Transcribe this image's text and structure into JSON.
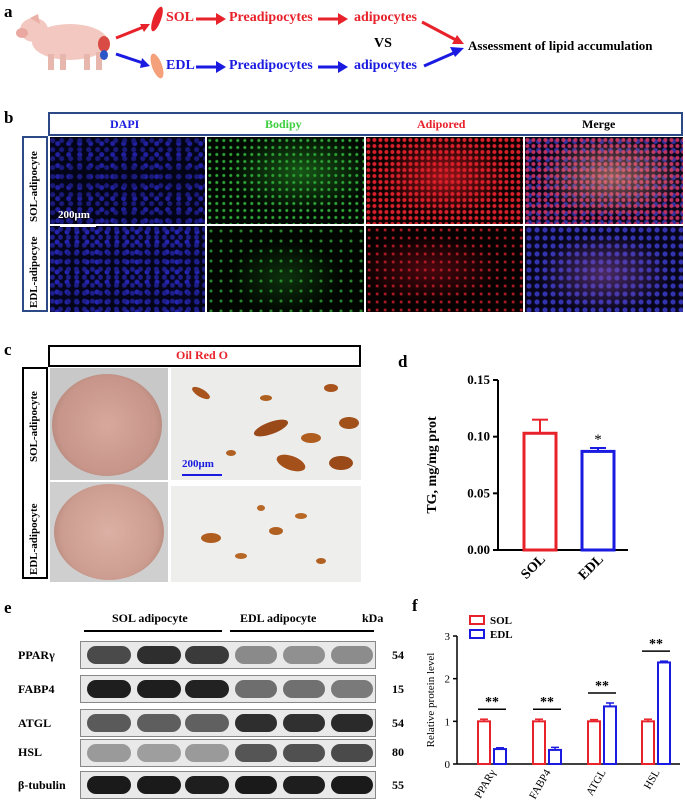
{
  "panel_a": {
    "label": "a",
    "sol": "SOL",
    "edl": "EDL",
    "preadipocytes": "Preadipocytes",
    "adipocytes": "adipocytes",
    "vs": "VS",
    "assessment": "Assessment  of lipid  accumulation"
  },
  "panel_b": {
    "label": "b",
    "channels": [
      "DAPI",
      "Bodipy",
      "Adipored",
      "Merge"
    ],
    "rows": [
      "SOL-adipocyte",
      "EDL-adipocyte"
    ],
    "scale": "200μm"
  },
  "panel_c": {
    "label": "c",
    "stain": "Oil Red O",
    "rows": [
      "SOL-adipocyte",
      "EDL-adipocyte"
    ],
    "scale": "200μm"
  },
  "panel_e": {
    "label": "e",
    "groups": [
      "SOL adipocyte",
      "EDL adipocyte"
    ],
    "kda": "kDa",
    "rows": [
      {
        "name": "PPARγ",
        "kda": "54"
      },
      {
        "name": "FABP4",
        "kda": "15"
      },
      {
        "name": "ATGL",
        "kda": "54"
      },
      {
        "name": "HSL",
        "kda": "80"
      },
      {
        "name": "β-tubulin",
        "kda": "55"
      }
    ]
  },
  "chart_data": [
    {
      "panel": "d",
      "type": "bar",
      "categories": [
        "SOL",
        "EDL"
      ],
      "values": [
        0.103,
        0.087
      ],
      "errors": [
        0.012,
        0.003
      ],
      "colors": [
        "#e8222a",
        "#1a1ae0"
      ],
      "ylabel": "TG, mg/mg prot",
      "ylim": [
        0,
        0.15
      ],
      "yticks": [
        "0.00",
        "0.05",
        "0.10",
        "0.15"
      ],
      "significance": [
        "",
        "*"
      ]
    },
    {
      "panel": "f",
      "type": "bar",
      "categories": [
        "PPARγ",
        "FABP4",
        "ATGL",
        "HSL"
      ],
      "ylabel": "Relative protein level",
      "ylim": [
        0,
        3
      ],
      "yticks": [
        "0",
        "1",
        "2",
        "3"
      ],
      "legend": "top-left",
      "series": [
        {
          "name": "SOL",
          "color": "#e8222a",
          "values": [
            1.0,
            1.0,
            1.0,
            1.0
          ],
          "errors": [
            0.05,
            0.05,
            0.04,
            0.05
          ]
        },
        {
          "name": "EDL",
          "color": "#1a1ae0",
          "values": [
            0.35,
            0.33,
            1.35,
            2.38
          ],
          "errors": [
            0.03,
            0.06,
            0.08,
            0.03
          ]
        }
      ],
      "significance": [
        "**",
        "**",
        "**",
        "**"
      ]
    }
  ]
}
